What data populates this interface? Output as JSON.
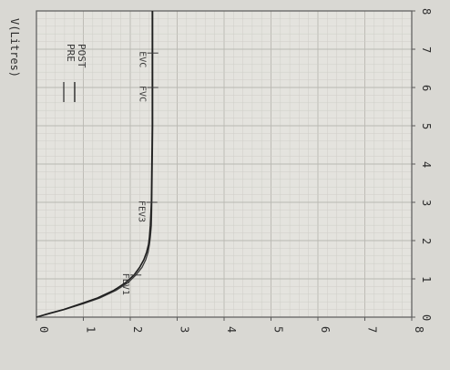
{
  "chart_data": {
    "type": "line",
    "orientation": "rotated-90-ccw",
    "ylabel": "V(Litres)",
    "xlabel": "",
    "xlim": [
      0,
      8
    ],
    "ylim": [
      0,
      8
    ],
    "x_ticks": [
      "0",
      "1",
      "2",
      "3",
      "4",
      "5",
      "6",
      "7",
      "8"
    ],
    "y_ticks": [
      "0",
      "1",
      "2",
      "3",
      "4",
      "5",
      "6",
      "7",
      "8"
    ],
    "grid": true,
    "legend_position": "top-left",
    "legend": [
      {
        "name": "PRE",
        "color": "#3a3a3a"
      },
      {
        "name": "POST",
        "color": "#1e1e1e"
      }
    ],
    "series": [
      {
        "name": "PRE",
        "x": [
          0,
          0.1,
          0.2,
          0.35,
          0.5,
          0.7,
          0.9,
          1.1,
          1.3,
          1.5,
          1.7,
          1.9,
          2.1,
          2.4,
          3.0,
          4.0,
          5.0,
          6.0,
          7.0,
          8.0
        ],
        "y": [
          0,
          0.3,
          0.6,
          1.0,
          1.35,
          1.7,
          1.95,
          2.12,
          2.25,
          2.33,
          2.38,
          2.41,
          2.43,
          2.45,
          2.46,
          2.47,
          2.48,
          2.48,
          2.48,
          2.48
        ]
      },
      {
        "name": "POST",
        "x": [
          0,
          0.1,
          0.2,
          0.35,
          0.5,
          0.7,
          0.9,
          1.1,
          1.3,
          1.5,
          1.7,
          1.9,
          2.1,
          2.4,
          3.0,
          4.0,
          5.0,
          6.0,
          7.0,
          8.0
        ],
        "y": [
          0,
          0.28,
          0.58,
          0.95,
          1.3,
          1.65,
          1.9,
          2.08,
          2.2,
          2.29,
          2.35,
          2.39,
          2.41,
          2.43,
          2.45,
          2.46,
          2.47,
          2.47,
          2.47,
          2.47
        ]
      }
    ],
    "annotations": [
      {
        "text": "FEV1",
        "x": 1.1,
        "y": 2.12
      },
      {
        "text": "FEV3",
        "x": 3.0,
        "y": 2.46
      },
      {
        "text": "FVC",
        "x": 6.0,
        "y": 2.48
      },
      {
        "text": "EVC",
        "x": 6.9,
        "y": 2.48
      }
    ]
  }
}
